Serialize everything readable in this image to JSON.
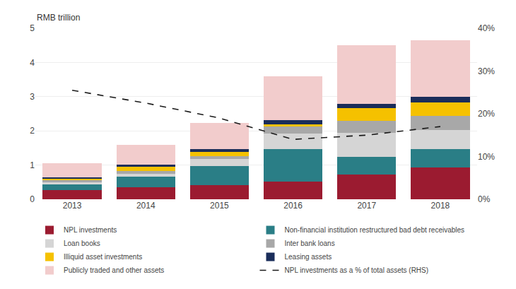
{
  "chart_data": {
    "type": "bar",
    "stacked": true,
    "ylabel": "RMB trillion",
    "categories": [
      "2013",
      "2014",
      "2015",
      "2016",
      "2017",
      "2018"
    ],
    "series": [
      {
        "name": "NPL investments",
        "color": "#9B1B30",
        "values": [
          0.27,
          0.35,
          0.42,
          0.52,
          0.72,
          0.92
        ]
      },
      {
        "name": "Non-financial institution restructured bad debt receivables",
        "color": "#2A7E86",
        "values": [
          0.17,
          0.32,
          0.55,
          0.95,
          0.52,
          0.55
        ]
      },
      {
        "name": "Loan books",
        "color": "#D5D5D5",
        "values": [
          0.06,
          0.08,
          0.2,
          0.45,
          0.7,
          0.55
        ]
      },
      {
        "name": "Inter bank loans",
        "color": "#A8A8A8",
        "values": [
          0.06,
          0.08,
          0.1,
          0.22,
          0.35,
          0.42
        ]
      },
      {
        "name": "Illiquid asset investments",
        "color": "#F5C100",
        "values": [
          0.04,
          0.13,
          0.12,
          0.04,
          0.38,
          0.4
        ]
      },
      {
        "name": "Leasing assets",
        "color": "#1A2D5A",
        "values": [
          0.05,
          0.06,
          0.07,
          0.14,
          0.12,
          0.16
        ]
      },
      {
        "name": "Publicly traded and other assets",
        "color": "#F2CCCC",
        "values": [
          0.4,
          0.58,
          0.77,
          1.28,
          1.71,
          1.65
        ]
      },
      {
        "name": "NPL investments as a % of total assets (RHS)",
        "type": "line",
        "axis": "y2",
        "color": "#1a1a1a",
        "line_style": "dashed",
        "values": [
          25.5,
          22.5,
          19.0,
          14.0,
          15.0,
          17.0
        ]
      }
    ],
    "ylim": [
      0,
      5
    ],
    "yticks": [
      0,
      1,
      2,
      3,
      4,
      5
    ],
    "y2lim": [
      0,
      40
    ],
    "y2ticks": [
      {
        "value": 0,
        "label": "0%"
      },
      {
        "value": 10,
        "label": "10%"
      },
      {
        "value": 20,
        "label": "20%"
      },
      {
        "value": 30,
        "label": "30%"
      },
      {
        "value": 40,
        "label": "40%"
      }
    ],
    "grid": true,
    "legend": "bottom"
  }
}
